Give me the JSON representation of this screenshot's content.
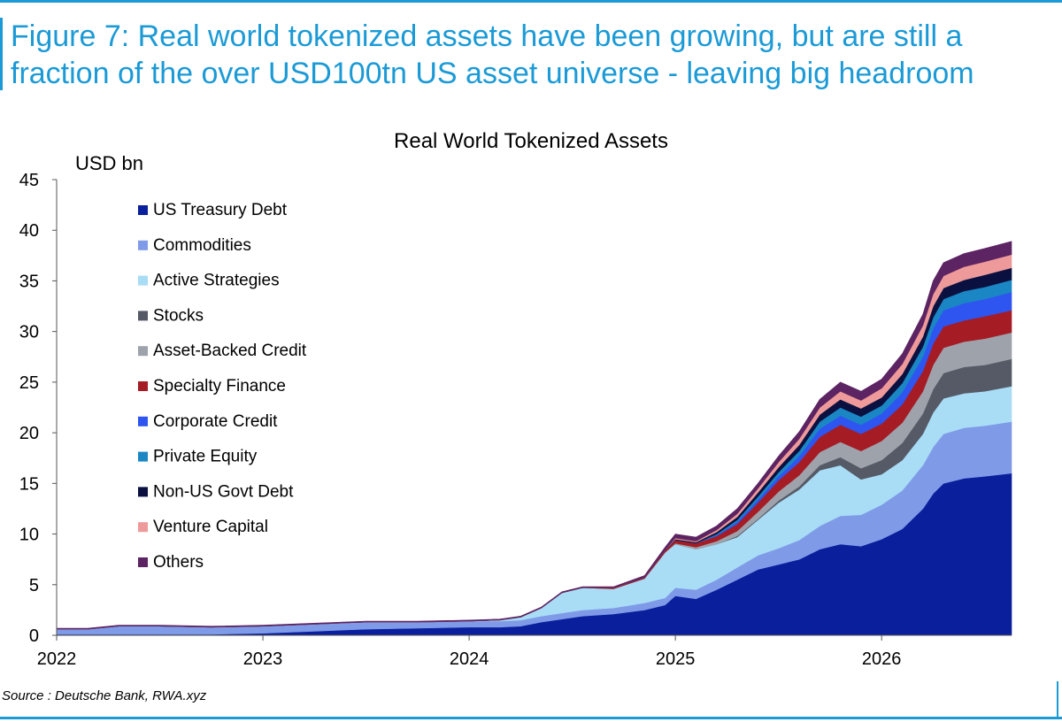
{
  "figure": {
    "title": "Figure 7: Real world tokenized assets have been growing, but are still a fraction of the over USD100tn US asset universe - leaving big headroom",
    "source": "Source : Deutsche Bank, RWA.xyz"
  },
  "chart_data": {
    "type": "area",
    "stacked": true,
    "title": "Real World Tokenized Assets",
    "ylabel": "USD bn",
    "xlabel": "",
    "xlim": [
      2022.0,
      2026.63
    ],
    "ylim": [
      0,
      45
    ],
    "xticks": [
      "2022",
      "2023",
      "2024",
      "2025",
      "2026"
    ],
    "yticks": [
      0,
      5,
      10,
      15,
      20,
      25,
      30,
      35,
      40,
      45
    ],
    "grid": false,
    "legend_position": "top-left",
    "x": [
      2022.0,
      2022.15,
      2022.3,
      2022.5,
      2022.75,
      2023.0,
      2023.25,
      2023.5,
      2023.75,
      2024.0,
      2024.15,
      2024.25,
      2024.35,
      2024.45,
      2024.55,
      2024.7,
      2024.85,
      2024.95,
      2025.0,
      2025.1,
      2025.2,
      2025.3,
      2025.4,
      2025.5,
      2025.6,
      2025.7,
      2025.8,
      2025.9,
      2026.0,
      2026.1,
      2026.2,
      2026.25,
      2026.3,
      2026.4,
      2026.5,
      2026.63
    ],
    "series": [
      {
        "name": "US Treasury Debt",
        "color": "#0a1f9c",
        "values": [
          0.1,
          0.1,
          0.1,
          0.1,
          0.1,
          0.2,
          0.4,
          0.6,
          0.7,
          0.8,
          0.8,
          0.9,
          1.3,
          1.6,
          1.9,
          2.1,
          2.5,
          3.0,
          3.9,
          3.6,
          4.5,
          5.5,
          6.5,
          7.0,
          7.5,
          8.5,
          9.0,
          8.8,
          9.5,
          10.5,
          12.5,
          14.0,
          15.0,
          15.5,
          15.7,
          16.0
        ]
      },
      {
        "name": "Commodities",
        "color": "#7f9be8",
        "values": [
          0.5,
          0.5,
          0.8,
          0.8,
          0.7,
          0.7,
          0.7,
          0.7,
          0.6,
          0.6,
          0.6,
          0.6,
          0.6,
          0.6,
          0.6,
          0.6,
          0.7,
          0.7,
          0.8,
          0.9,
          1.0,
          1.2,
          1.4,
          1.6,
          1.9,
          2.3,
          2.8,
          3.1,
          3.4,
          3.8,
          4.3,
          4.6,
          4.9,
          5.0,
          5.0,
          5.1
        ]
      },
      {
        "name": "Active Strategies",
        "color": "#a9dcf5",
        "values": [
          0.0,
          0.0,
          0.0,
          0.0,
          0.0,
          0.0,
          0.0,
          0.0,
          0.0,
          0.0,
          0.1,
          0.3,
          0.8,
          2.0,
          2.2,
          1.9,
          2.4,
          4.5,
          4.3,
          4.0,
          3.5,
          3.0,
          3.5,
          4.5,
          5.0,
          5.5,
          5.0,
          3.5,
          3.0,
          3.0,
          3.1,
          3.4,
          3.5,
          3.4,
          3.4,
          3.5
        ]
      },
      {
        "name": "Stocks",
        "color": "#555a66",
        "values": [
          0.0,
          0.0,
          0.0,
          0.0,
          0.0,
          0.0,
          0.0,
          0.0,
          0.0,
          0.0,
          0.0,
          0.0,
          0.0,
          0.0,
          0.0,
          0.0,
          0.0,
          0.0,
          0.0,
          0.0,
          0.0,
          0.1,
          0.1,
          0.2,
          0.3,
          0.5,
          0.8,
          1.1,
          1.4,
          1.7,
          2.0,
          2.3,
          2.5,
          2.6,
          2.6,
          2.7
        ]
      },
      {
        "name": "Asset-Backed Credit",
        "color": "#9ea2ab",
        "values": [
          0.0,
          0.0,
          0.0,
          0.0,
          0.0,
          0.0,
          0.0,
          0.0,
          0.0,
          0.0,
          0.0,
          0.0,
          0.0,
          0.0,
          0.0,
          0.0,
          0.0,
          0.0,
          0.1,
          0.2,
          0.3,
          0.5,
          0.7,
          0.9,
          1.1,
          1.3,
          1.5,
          1.7,
          1.9,
          2.0,
          2.2,
          2.4,
          2.5,
          2.5,
          2.6,
          2.6
        ]
      },
      {
        "name": "Specialty Finance",
        "color": "#a51c24",
        "values": [
          0.0,
          0.0,
          0.0,
          0.0,
          0.0,
          0.0,
          0.0,
          0.0,
          0.0,
          0.0,
          0.0,
          0.0,
          0.0,
          0.0,
          0.0,
          0.1,
          0.1,
          0.2,
          0.3,
          0.4,
          0.5,
          0.7,
          0.9,
          1.1,
          1.3,
          1.5,
          1.7,
          1.7,
          1.7,
          1.8,
          2.0,
          2.1,
          2.1,
          2.1,
          2.2,
          2.2
        ]
      },
      {
        "name": "Corporate Credit",
        "color": "#2e55f0",
        "values": [
          0.0,
          0.0,
          0.0,
          0.0,
          0.0,
          0.0,
          0.0,
          0.0,
          0.0,
          0.0,
          0.0,
          0.0,
          0.0,
          0.0,
          0.0,
          0.0,
          0.0,
          0.0,
          0.0,
          0.0,
          0.1,
          0.2,
          0.3,
          0.4,
          0.6,
          0.8,
          0.9,
          0.9,
          1.0,
          1.2,
          1.4,
          1.5,
          1.6,
          1.7,
          1.7,
          1.8
        ]
      },
      {
        "name": "Private Equity",
        "color": "#1b86c4",
        "values": [
          0.0,
          0.0,
          0.0,
          0.0,
          0.0,
          0.0,
          0.0,
          0.0,
          0.0,
          0.0,
          0.0,
          0.0,
          0.0,
          0.0,
          0.0,
          0.0,
          0.0,
          0.0,
          0.0,
          0.0,
          0.1,
          0.2,
          0.3,
          0.4,
          0.5,
          0.7,
          0.8,
          0.8,
          0.8,
          0.9,
          1.0,
          1.1,
          1.1,
          1.2,
          1.2,
          1.2
        ]
      },
      {
        "name": "Non-US Govt Debt",
        "color": "#0a1140",
        "values": [
          0.0,
          0.0,
          0.0,
          0.0,
          0.0,
          0.0,
          0.0,
          0.0,
          0.0,
          0.0,
          0.0,
          0.0,
          0.0,
          0.0,
          0.0,
          0.0,
          0.0,
          0.0,
          0.1,
          0.1,
          0.2,
          0.3,
          0.4,
          0.5,
          0.6,
          0.7,
          0.8,
          0.8,
          0.8,
          0.9,
          1.0,
          1.1,
          1.1,
          1.1,
          1.2,
          1.2
        ]
      },
      {
        "name": "Venture Capital",
        "color": "#ee9a9a",
        "values": [
          0.0,
          0.0,
          0.0,
          0.0,
          0.0,
          0.0,
          0.0,
          0.0,
          0.0,
          0.0,
          0.0,
          0.0,
          0.0,
          0.0,
          0.0,
          0.0,
          0.0,
          0.0,
          0.1,
          0.1,
          0.2,
          0.3,
          0.4,
          0.5,
          0.6,
          0.7,
          0.8,
          0.8,
          0.9,
          1.0,
          1.1,
          1.2,
          1.2,
          1.3,
          1.3,
          1.3
        ]
      },
      {
        "name": "Others",
        "color": "#5c2462",
        "values": [
          0.1,
          0.1,
          0.1,
          0.1,
          0.1,
          0.1,
          0.1,
          0.1,
          0.1,
          0.1,
          0.1,
          0.1,
          0.1,
          0.1,
          0.1,
          0.1,
          0.2,
          0.3,
          0.4,
          0.4,
          0.4,
          0.5,
          0.5,
          0.6,
          0.7,
          0.8,
          0.9,
          0.9,
          0.9,
          1.0,
          1.1,
          1.3,
          1.3,
          1.3,
          1.3,
          1.3
        ]
      }
    ]
  }
}
